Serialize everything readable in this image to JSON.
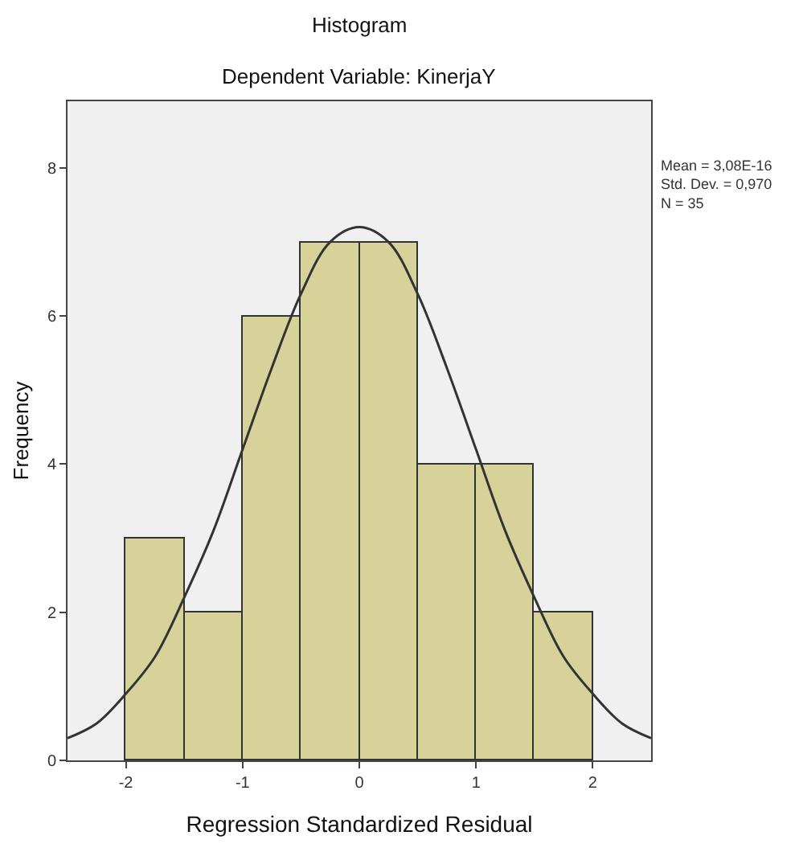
{
  "chart_data": {
    "type": "histogram",
    "title": "Histogram",
    "subtitle": "Dependent Variable: KinerjaY",
    "xlabel": "Regression Standardized Residual",
    "ylabel": "Frequency",
    "bins": [
      -2,
      -1.5,
      -1,
      -0.5,
      0,
      0.5,
      1,
      1.5,
      2
    ],
    "values": [
      3,
      2,
      6,
      7,
      7,
      4,
      4,
      2
    ],
    "color": "#d6d29a",
    "series": [
      {
        "type": "line",
        "color": "#333333",
        "x": [
          -2.5,
          -2.25,
          -2,
          -1.75,
          -1.5,
          -1.25,
          -1,
          -0.75,
          -0.5,
          -0.25,
          0,
          0.25,
          0.5,
          0.75,
          1,
          1.25,
          1.5,
          1.75,
          2,
          2.25,
          2.5
        ],
        "values": [
          0.3,
          0.5,
          0.9,
          1.4,
          2.2,
          3.1,
          4.2,
          5.3,
          6.3,
          7.0,
          7.2,
          7.0,
          6.3,
          5.3,
          4.2,
          3.1,
          2.2,
          1.4,
          0.9,
          0.5,
          0.3
        ]
      }
    ],
    "xlim": [
      -2.5,
      2.5
    ],
    "xticks": [
      -2,
      -1,
      0,
      1,
      2
    ],
    "ylim": [
      0,
      8.9
    ],
    "yticks": [
      0,
      2,
      4,
      6,
      8
    ],
    "annotations": [
      "Mean = 3,08E-16\nStd. Dev. = 0,970\nN = 35"
    ],
    "grid": false
  }
}
